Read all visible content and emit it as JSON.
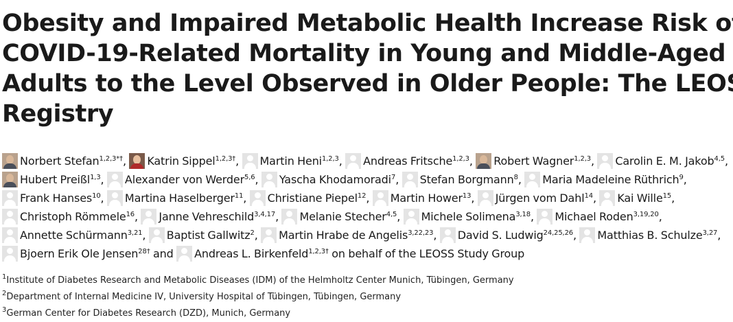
{
  "title_lines": [
    "Obesity and Impaired Metabolic Health Increase Risk of",
    "COVID-19-Related Mortality in Young and Middle-Aged",
    "Adults to the Level Observed in Older People: The LEOSS",
    "Registry"
  ],
  "authors": [
    {
      "name": "Norbert Stefan",
      "sup": "1,2,3*†",
      "photo": true,
      "sep": ", "
    },
    {
      "name": "Katrin Sippel",
      "sup": "1,2,3†",
      "photo": true,
      "sep": ", "
    },
    {
      "name": "Martin Heni",
      "sup": "1,2,3",
      "photo": false,
      "sep": ", "
    },
    {
      "name": "Andreas Fritsche",
      "sup": "1,2,3",
      "photo": false,
      "sep": ", "
    },
    {
      "name": "Robert Wagner",
      "sup": "1,2,3",
      "photo": true,
      "sep": ", "
    },
    {
      "name": "Carolin E. M. Jakob",
      "sup": "4,5",
      "photo": false,
      "sep": ", "
    },
    {
      "name": "Hubert Preißl",
      "sup": "1,3",
      "photo": true,
      "sep": ", "
    },
    {
      "name": "Alexander von Werder",
      "sup": "5,6",
      "photo": false,
      "sep": ", "
    },
    {
      "name": "Yascha Khodamoradi",
      "sup": "7",
      "photo": false,
      "sep": ", "
    },
    {
      "name": "Stefan Borgmann",
      "sup": "8",
      "photo": false,
      "sep": ", "
    },
    {
      "name": "Maria Madeleine Rüthrich",
      "sup": "9",
      "photo": false,
      "sep": ", "
    },
    {
      "name": "Frank Hanses",
      "sup": "10",
      "photo": false,
      "sep": ", "
    },
    {
      "name": "Martina Haselberger",
      "sup": "11",
      "photo": false,
      "sep": ", "
    },
    {
      "name": "Christiane Piepel",
      "sup": "12",
      "photo": false,
      "sep": ", "
    },
    {
      "name": "Martin Hower",
      "sup": "13",
      "photo": false,
      "sep": ", "
    },
    {
      "name": "Jürgen vom Dahl",
      "sup": "14",
      "photo": false,
      "sep": ", "
    },
    {
      "name": "Kai Wille",
      "sup": "15",
      "photo": false,
      "sep": ", "
    },
    {
      "name": "Christoph Römmele",
      "sup": "16",
      "photo": false,
      "sep": ", "
    },
    {
      "name": "Janne Vehreschild",
      "sup": "3,4,17",
      "photo": false,
      "sep": ", "
    },
    {
      "name": "Melanie Stecher",
      "sup": "4,5",
      "photo": false,
      "sep": ", "
    },
    {
      "name": "Michele Solimena",
      "sup": "3,18",
      "photo": false,
      "sep": ", "
    },
    {
      "name": "Michael Roden",
      "sup": "3,19,20",
      "photo": false,
      "sep": ", "
    },
    {
      "name": "Annette Schürmann",
      "sup": "3,21",
      "photo": false,
      "sep": ", "
    },
    {
      "name": "Baptist Gallwitz",
      "sup": "2",
      "photo": false,
      "sep": ", "
    },
    {
      "name": "Martin Hrabe de Angelis",
      "sup": "3,22,23",
      "photo": false,
      "sep": ", "
    },
    {
      "name": "David S. Ludwig",
      "sup": "24,25,26",
      "photo": false,
      "sep": ", "
    },
    {
      "name": "Matthias B. Schulze",
      "sup": "3,27",
      "photo": false,
      "sep": ", "
    },
    {
      "name": "Bjoern Erik Ole Jensen",
      "sup": "28†",
      "photo": false,
      "sep": " and "
    },
    {
      "name": "Andreas L. Birkenfeld",
      "sup": "1,2,3†",
      "photo": false,
      "sep": ""
    }
  ],
  "group_text": " on behalf of the LEOSS Study Group",
  "affiliations": [
    {
      "num": "1",
      "text": "Institute of Diabetes Research and Metabolic Diseases (IDM) of the Helmholtz Center Munich, Tübingen, Germany"
    },
    {
      "num": "2",
      "text": "Department of Internal Medicine IV, University Hospital of Tübingen, Tübingen, Germany"
    },
    {
      "num": "3",
      "text": "German Center for Diabetes Research (DZD), Munich, Germany"
    }
  ]
}
